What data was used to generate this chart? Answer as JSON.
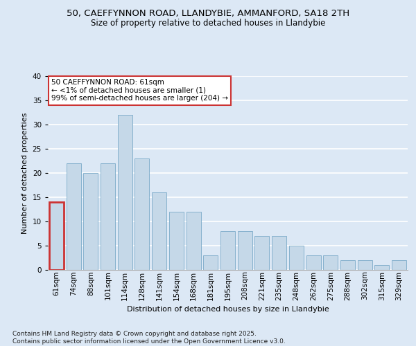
{
  "title1": "50, CAEFFYNNON ROAD, LLANDYBIE, AMMANFORD, SA18 2TH",
  "title2": "Size of property relative to detached houses in Llandybie",
  "xlabel": "Distribution of detached houses by size in Llandybie",
  "ylabel": "Number of detached properties",
  "categories": [
    "61sqm",
    "74sqm",
    "88sqm",
    "101sqm",
    "114sqm",
    "128sqm",
    "141sqm",
    "154sqm",
    "168sqm",
    "181sqm",
    "195sqm",
    "208sqm",
    "221sqm",
    "235sqm",
    "248sqm",
    "262sqm",
    "275sqm",
    "288sqm",
    "302sqm",
    "315sqm",
    "329sqm"
  ],
  "values": [
    14,
    22,
    20,
    22,
    32,
    23,
    16,
    12,
    12,
    3,
    8,
    8,
    7,
    7,
    5,
    3,
    3,
    2,
    2,
    1,
    2
  ],
  "highlight_index": 0,
  "bar_color": "#c5d8e8",
  "bar_edge_color": "#7baac8",
  "highlight_edge_color": "#cc3333",
  "annotation_text": "50 CAEFFYNNON ROAD: 61sqm\n← <1% of detached houses are smaller (1)\n99% of semi-detached houses are larger (204) →",
  "ylim": [
    0,
    40
  ],
  "yticks": [
    0,
    5,
    10,
    15,
    20,
    25,
    30,
    35,
    40
  ],
  "fig_bg_color": "#dce8f5",
  "plot_bg_color": "#dce8f5",
  "grid_color": "#ffffff",
  "footer_text": "Contains HM Land Registry data © Crown copyright and database right 2025.\nContains public sector information licensed under the Open Government Licence v3.0.",
  "title_fontsize": 9.5,
  "subtitle_fontsize": 8.5,
  "axis_label_fontsize": 8,
  "tick_fontsize": 7.5,
  "annotation_fontsize": 7.5,
  "footer_fontsize": 6.5
}
